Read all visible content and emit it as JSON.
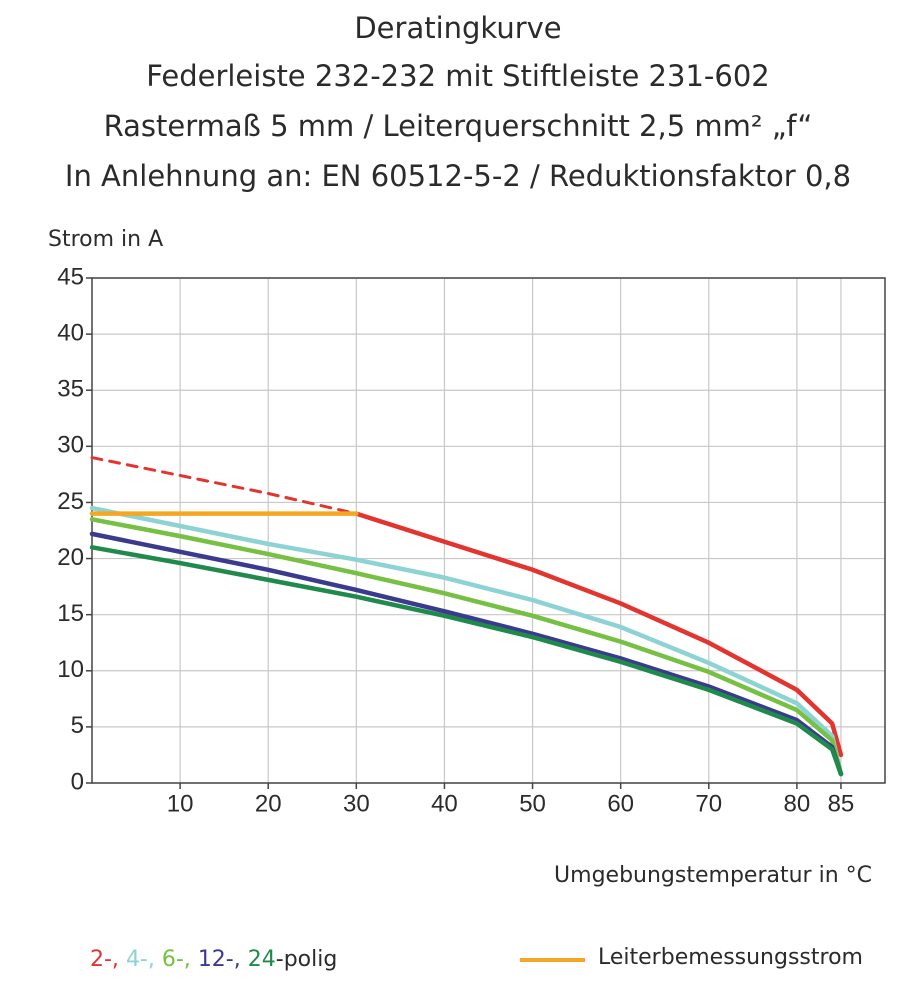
{
  "chart_data": {
    "type": "line",
    "title": [
      "Deratingkurve",
      "Federleiste 232-232 mit Stiftleiste 231-602",
      "Rastermaß 5 mm / Leiterquerschnitt 2,5 mm² „f“",
      "In Anlehnung an: EN 60512-5-2 / Reduktionsfaktor 0,8"
    ],
    "y_label": "Strom in A",
    "x_label": "Umgebungstemperatur in °C",
    "x": [
      0,
      10,
      20,
      30,
      40,
      50,
      60,
      70,
      80,
      84,
      85
    ],
    "xlim": [
      0,
      90
    ],
    "xticks": [
      10,
      20,
      30,
      40,
      50,
      60,
      70,
      80,
      85
    ],
    "ylim": [
      0,
      45
    ],
    "yticks": [
      0,
      5,
      10,
      15,
      20,
      25,
      30,
      35,
      40,
      45
    ],
    "grid": true,
    "series": [
      {
        "name": "2-,",
        "color": "#e3342f",
        "dashed_below_x": 30,
        "values": [
          29,
          27.4,
          25.8,
          24,
          21.5,
          19,
          16,
          12.5,
          8.3,
          5.3,
          2.5
        ]
      },
      {
        "name": "4-,",
        "color": "#8dd3d4",
        "values": [
          24.5,
          22.9,
          21.3,
          19.9,
          18.3,
          16.3,
          13.9,
          10.7,
          7.1,
          4.2,
          0.8
        ]
      },
      {
        "name": "6-,",
        "color": "#76c043",
        "values": [
          23.5,
          22.0,
          20.4,
          18.7,
          16.9,
          14.9,
          12.6,
          9.9,
          6.5,
          3.8,
          0.8
        ]
      },
      {
        "name": "12-,",
        "color": "#3a3a8f",
        "values": [
          22.2,
          20.6,
          19.0,
          17.2,
          15.3,
          13.3,
          11.1,
          8.6,
          5.6,
          3.2,
          0.8
        ]
      },
      {
        "name": "24",
        "color": "#1f8a4c",
        "values": [
          21,
          19.6,
          18.1,
          16.6,
          14.9,
          13.0,
          10.8,
          8.3,
          5.3,
          3.0,
          0.8
        ]
      },
      {
        "name": "Leiterbemessungsstrom",
        "color": "#f5a623",
        "values": [
          24,
          24,
          24,
          24,
          null,
          null,
          null,
          null,
          null,
          null,
          null
        ]
      }
    ],
    "legend_suffix": "-polig"
  }
}
